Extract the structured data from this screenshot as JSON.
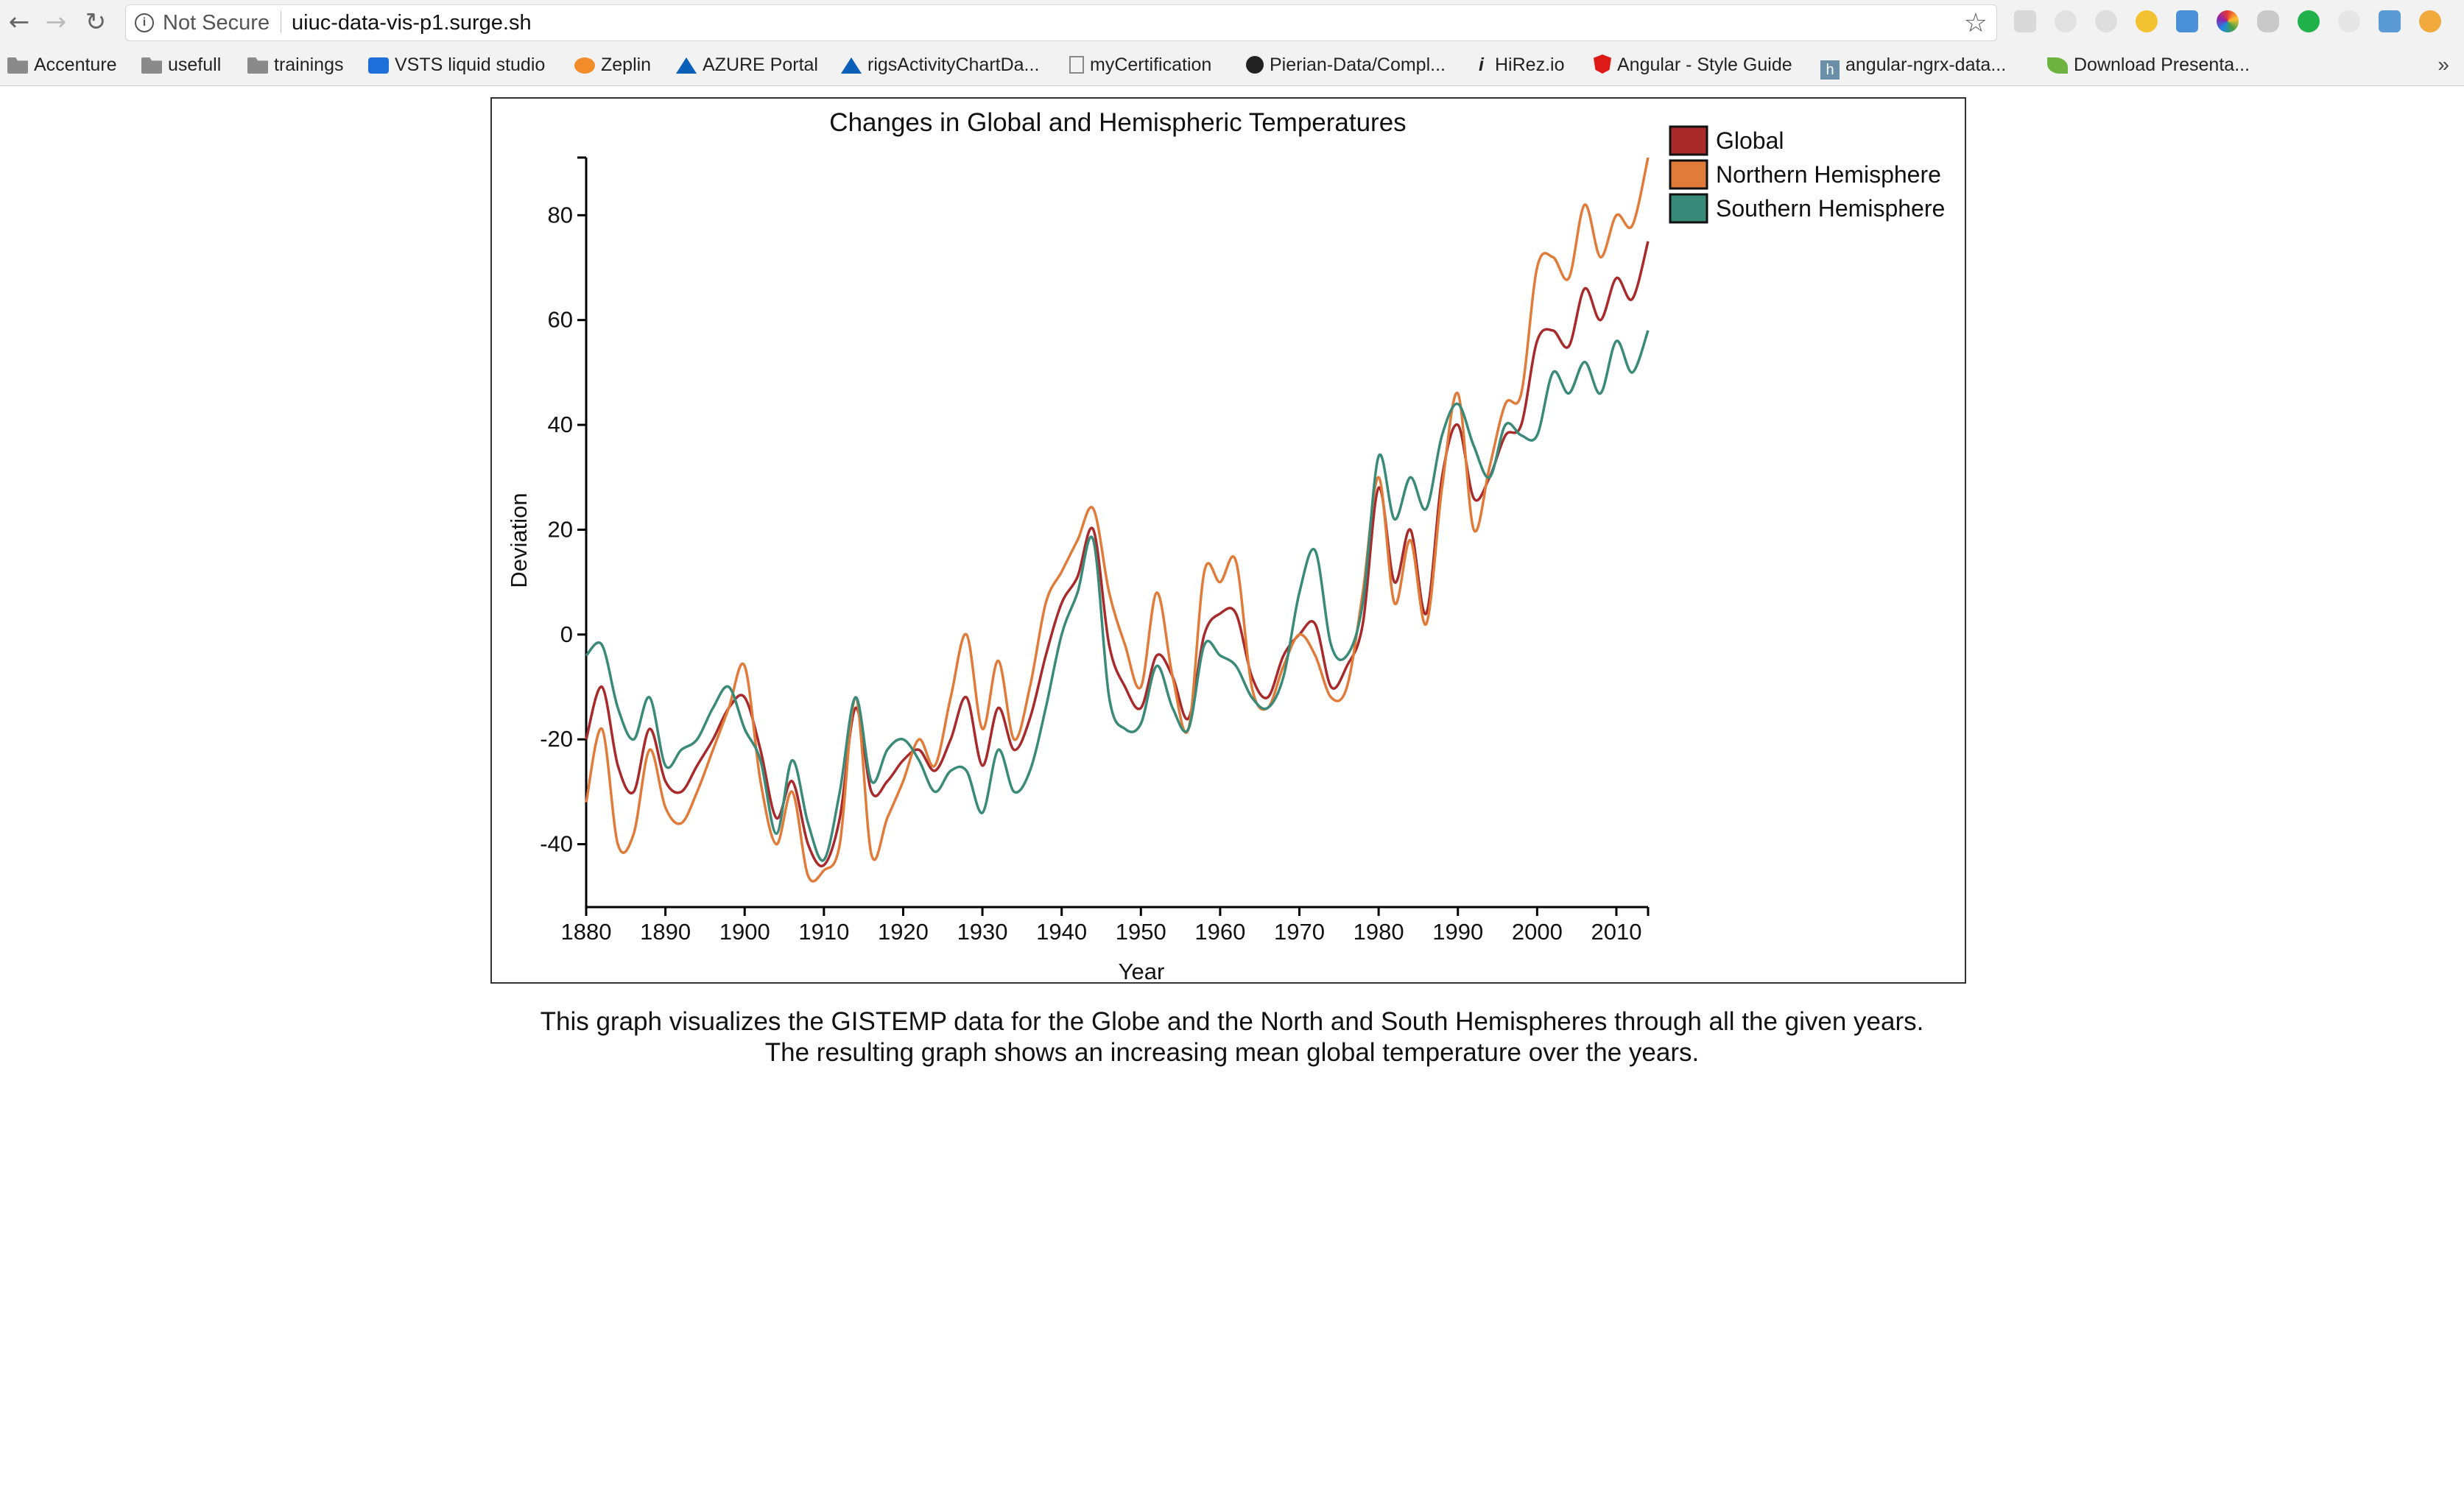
{
  "browser": {
    "security_label": "Not Secure",
    "url": "uiuc-data-vis-p1.surge.sh",
    "bookmarks": [
      {
        "label": "Accenture",
        "icon": "folder-icon"
      },
      {
        "label": "usefull",
        "icon": "folder-icon"
      },
      {
        "label": "trainings",
        "icon": "folder-icon"
      },
      {
        "label": "VSTS liquid studio",
        "icon": "vsts-icon"
      },
      {
        "label": "Zeplin",
        "icon": "zeplin-icon"
      },
      {
        "label": "AZURE Portal",
        "icon": "azure-icon"
      },
      {
        "label": "rigsActivityChartDa...",
        "icon": "azure-icon"
      },
      {
        "label": "myCertification",
        "icon": "page-icon"
      },
      {
        "label": "Pierian-Data/Compl...",
        "icon": "github-icon"
      },
      {
        "label": "HiRez.io",
        "icon": "info-i-icon"
      },
      {
        "label": "Angular - Style Guide",
        "icon": "angular-icon"
      },
      {
        "label": "angular-ngrx-data...",
        "icon": "h-icon"
      },
      {
        "label": "Download Presenta...",
        "icon": "leaf-icon"
      }
    ],
    "more_label": "»"
  },
  "chart_data": {
    "type": "line",
    "title": "Changes in Global and Hemispheric Temperatures",
    "xlabel": "Year",
    "ylabel": "Deviation",
    "xlim": [
      1880,
      2014
    ],
    "ylim": [
      -52,
      91
    ],
    "x_ticks": [
      1880,
      1890,
      1900,
      1910,
      1920,
      1930,
      1940,
      1950,
      1960,
      1970,
      1980,
      1990,
      2000,
      2010
    ],
    "x_tick_labels": [
      "1880",
      "1890",
      "1900",
      "1910",
      "1920",
      "1930",
      "1940",
      "1950",
      "1960",
      "1970",
      "1980",
      "1990",
      "2000",
      "2010"
    ],
    "y_ticks": [
      -40,
      -20,
      0,
      20,
      40,
      60,
      80
    ],
    "y_tick_labels": [
      "-40",
      "-20",
      "0",
      "20",
      "40",
      "60",
      "80"
    ],
    "grid": false,
    "legend_position": "top-right",
    "x": [
      1880,
      1882,
      1884,
      1886,
      1888,
      1890,
      1892,
      1894,
      1896,
      1898,
      1900,
      1902,
      1904,
      1906,
      1908,
      1910,
      1912,
      1914,
      1916,
      1918,
      1920,
      1922,
      1924,
      1926,
      1928,
      1930,
      1932,
      1934,
      1936,
      1938,
      1940,
      1942,
      1944,
      1946,
      1948,
      1950,
      1952,
      1954,
      1956,
      1958,
      1960,
      1962,
      1964,
      1966,
      1968,
      1970,
      1972,
      1974,
      1976,
      1978,
      1980,
      1982,
      1984,
      1986,
      1988,
      1990,
      1992,
      1994,
      1996,
      1998,
      2000,
      2002,
      2004,
      2006,
      2008,
      2010,
      2012,
      2014
    ],
    "series": [
      {
        "name": "Global",
        "color": "#a82a2a",
        "values": [
          -20,
          -10,
          -25,
          -30,
          -18,
          -28,
          -30,
          -25,
          -20,
          -14,
          -12,
          -22,
          -35,
          -28,
          -40,
          -44,
          -35,
          -14,
          -30,
          -28,
          -24,
          -22,
          -26,
          -20,
          -12,
          -25,
          -14,
          -22,
          -16,
          -4,
          6,
          11,
          20,
          -2,
          -10,
          -14,
          -4,
          -8,
          -16,
          0,
          4,
          4,
          -8,
          -12,
          -4,
          0,
          2,
          -10,
          -6,
          2,
          28,
          10,
          20,
          4,
          30,
          40,
          26,
          30,
          38,
          40,
          56,
          58,
          55,
          66,
          60,
          68,
          64,
          75
        ]
      },
      {
        "name": "Northern Hemisphere",
        "color": "#e07b39",
        "values": [
          -32,
          -18,
          -40,
          -38,
          -22,
          -33,
          -36,
          -30,
          -22,
          -14,
          -6,
          -28,
          -40,
          -30,
          -46,
          -45,
          -40,
          -12,
          -42,
          -35,
          -28,
          -20,
          -25,
          -12,
          0,
          -18,
          -5,
          -20,
          -10,
          6,
          12,
          18,
          24,
          8,
          -2,
          -10,
          8,
          -8,
          -18,
          12,
          10,
          14,
          -10,
          -14,
          -6,
          0,
          -4,
          -12,
          -10,
          8,
          30,
          6,
          18,
          2,
          28,
          46,
          20,
          32,
          44,
          46,
          70,
          72,
          68,
          82,
          72,
          80,
          78,
          91
        ]
      },
      {
        "name": "Southern Hemisphere",
        "color": "#3a8a7a",
        "values": [
          -4,
          -2,
          -14,
          -20,
          -12,
          -25,
          -22,
          -20,
          -14,
          -10,
          -18,
          -24,
          -38,
          -24,
          -36,
          -43,
          -30,
          -12,
          -28,
          -22,
          -20,
          -24,
          -30,
          -26,
          -26,
          -34,
          -22,
          -30,
          -26,
          -14,
          0,
          8,
          18,
          -12,
          -18,
          -17,
          -6,
          -14,
          -18,
          -2,
          -4,
          -6,
          -12,
          -14,
          -8,
          8,
          16,
          -2,
          -4,
          6,
          34,
          22,
          30,
          24,
          38,
          44,
          36,
          30,
          40,
          38,
          38,
          50,
          46,
          52,
          46,
          56,
          50,
          58
        ]
      }
    ]
  },
  "caption": {
    "line1": "This graph visualizes the GISTEMP data for the Globe and the North and South Hemispheres through all the given years.",
    "line2": "The resulting graph shows an increasing mean global temperature over the years."
  }
}
